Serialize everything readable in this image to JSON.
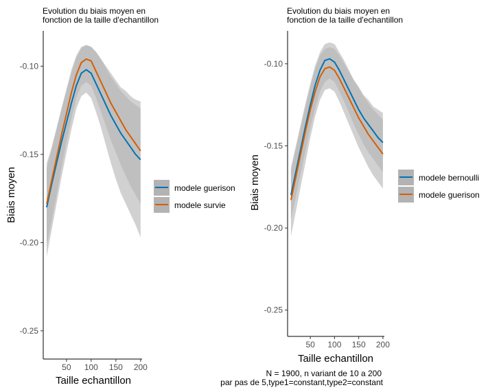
{
  "caption": {
    "line1": "N = 1900, n variant de 10 a 200",
    "line2": "par pas de 5,type1=constant,type2=constant"
  },
  "colors": {
    "blue": "#0072B2",
    "orange": "#D55E00",
    "band": "#b3b3b3"
  },
  "chart_data": [
    {
      "type": "line",
      "title": [
        "Evolution du biais moyen en",
        "fonction de la taille d'echantillon"
      ],
      "xlabel": "Taille echantillon",
      "ylabel": "Biais moyen",
      "xlim": [
        3,
        203
      ],
      "ylim": [
        -0.266,
        -0.08
      ],
      "xticks": [
        50,
        100,
        150,
        200
      ],
      "xtick_labels": [
        "50",
        "100",
        "150",
        "200"
      ],
      "yticks": [
        -0.25,
        -0.2,
        -0.15,
        -0.1
      ],
      "ytick_labels": [
        "-0.25",
        "-0.20",
        "-0.15",
        "-0.10"
      ],
      "grid": false,
      "legend_position": "right",
      "x": [
        10,
        20,
        30,
        40,
        50,
        60,
        70,
        80,
        90,
        100,
        110,
        120,
        130,
        140,
        150,
        160,
        170,
        180,
        190,
        200
      ],
      "series": [
        {
          "name": "modele guerison",
          "color": "blue",
          "values": [
            -0.18,
            -0.167,
            -0.155,
            -0.143,
            -0.132,
            -0.121,
            -0.111,
            -0.104,
            -0.102,
            -0.104,
            -0.11,
            -0.116,
            -0.122,
            -0.128,
            -0.133,
            -0.138,
            -0.142,
            -0.146,
            -0.15,
            -0.153
          ],
          "band_lower": [
            -0.208,
            -0.193,
            -0.178,
            -0.163,
            -0.149,
            -0.136,
            -0.124,
            -0.117,
            -0.115,
            -0.118,
            -0.126,
            -0.135,
            -0.145,
            -0.155,
            -0.164,
            -0.172,
            -0.178,
            -0.184,
            -0.19,
            -0.197
          ],
          "band_upper": [
            -0.155,
            -0.146,
            -0.135,
            -0.124,
            -0.114,
            -0.104,
            -0.095,
            -0.09,
            -0.088,
            -0.089,
            -0.092,
            -0.096,
            -0.1,
            -0.104,
            -0.108,
            -0.112,
            -0.114,
            -0.117,
            -0.119,
            -0.12
          ]
        },
        {
          "name": "modele survie",
          "color": "orange",
          "values": [
            -0.178,
            -0.165,
            -0.152,
            -0.139,
            -0.127,
            -0.115,
            -0.105,
            -0.098,
            -0.096,
            -0.097,
            -0.103,
            -0.109,
            -0.115,
            -0.121,
            -0.126,
            -0.131,
            -0.136,
            -0.14,
            -0.144,
            -0.148
          ],
          "band_lower": [
            -0.202,
            -0.188,
            -0.173,
            -0.158,
            -0.143,
            -0.13,
            -0.118,
            -0.111,
            -0.109,
            -0.111,
            -0.118,
            -0.126,
            -0.134,
            -0.142,
            -0.149,
            -0.156,
            -0.162,
            -0.168,
            -0.173,
            -0.178
          ],
          "band_upper": [
            -0.158,
            -0.147,
            -0.136,
            -0.124,
            -0.113,
            -0.102,
            -0.094,
            -0.089,
            -0.088,
            -0.089,
            -0.092,
            -0.096,
            -0.101,
            -0.106,
            -0.11,
            -0.114,
            -0.117,
            -0.12,
            -0.122,
            -0.124
          ]
        }
      ]
    },
    {
      "type": "line",
      "title": [
        "Evolution du biais moyen en",
        "fonction de la taille d'echantillon"
      ],
      "xlabel": "Taille echantillon",
      "ylabel": "Biais moyen",
      "xlim": [
        3,
        203
      ],
      "ylim": [
        -0.266,
        -0.08
      ],
      "xticks": [
        50,
        100,
        150,
        200
      ],
      "xtick_labels": [
        "50",
        "100",
        "150",
        "200"
      ],
      "yticks": [
        -0.25,
        -0.2,
        -0.15,
        -0.1
      ],
      "ytick_labels": [
        "-0.25",
        "-0.20",
        "-0.15",
        "-0.10"
      ],
      "grid": false,
      "legend_position": "right",
      "x": [
        10,
        20,
        30,
        40,
        50,
        60,
        70,
        80,
        90,
        100,
        110,
        120,
        130,
        140,
        150,
        160,
        170,
        180,
        190,
        200
      ],
      "series": [
        {
          "name": "modele bernoulli",
          "color": "blue",
          "values": [
            -0.18,
            -0.166,
            -0.152,
            -0.138,
            -0.125,
            -0.113,
            -0.104,
            -0.098,
            -0.097,
            -0.099,
            -0.104,
            -0.11,
            -0.116,
            -0.122,
            -0.128,
            -0.133,
            -0.137,
            -0.141,
            -0.145,
            -0.148
          ],
          "band_lower": [
            -0.195,
            -0.181,
            -0.167,
            -0.153,
            -0.139,
            -0.127,
            -0.117,
            -0.111,
            -0.109,
            -0.111,
            -0.117,
            -0.123,
            -0.13,
            -0.137,
            -0.143,
            -0.149,
            -0.154,
            -0.158,
            -0.162,
            -0.166
          ],
          "band_upper": [
            -0.163,
            -0.15,
            -0.137,
            -0.124,
            -0.112,
            -0.101,
            -0.093,
            -0.088,
            -0.087,
            -0.088,
            -0.093,
            -0.098,
            -0.104,
            -0.11,
            -0.114,
            -0.119,
            -0.122,
            -0.126,
            -0.128,
            -0.13
          ]
        },
        {
          "name": "modele guerison",
          "color": "orange",
          "values": [
            -0.183,
            -0.169,
            -0.155,
            -0.141,
            -0.128,
            -0.117,
            -0.108,
            -0.103,
            -0.102,
            -0.104,
            -0.109,
            -0.115,
            -0.121,
            -0.127,
            -0.133,
            -0.138,
            -0.143,
            -0.147,
            -0.151,
            -0.155
          ],
          "band_lower": [
            -0.205,
            -0.19,
            -0.175,
            -0.16,
            -0.145,
            -0.132,
            -0.122,
            -0.116,
            -0.115,
            -0.117,
            -0.123,
            -0.13,
            -0.137,
            -0.144,
            -0.151,
            -0.157,
            -0.163,
            -0.168,
            -0.172,
            -0.176
          ],
          "band_upper": [
            -0.165,
            -0.152,
            -0.139,
            -0.126,
            -0.114,
            -0.103,
            -0.095,
            -0.091,
            -0.09,
            -0.091,
            -0.095,
            -0.1,
            -0.105,
            -0.11,
            -0.115,
            -0.12,
            -0.124,
            -0.128,
            -0.131,
            -0.134
          ]
        }
      ]
    }
  ]
}
